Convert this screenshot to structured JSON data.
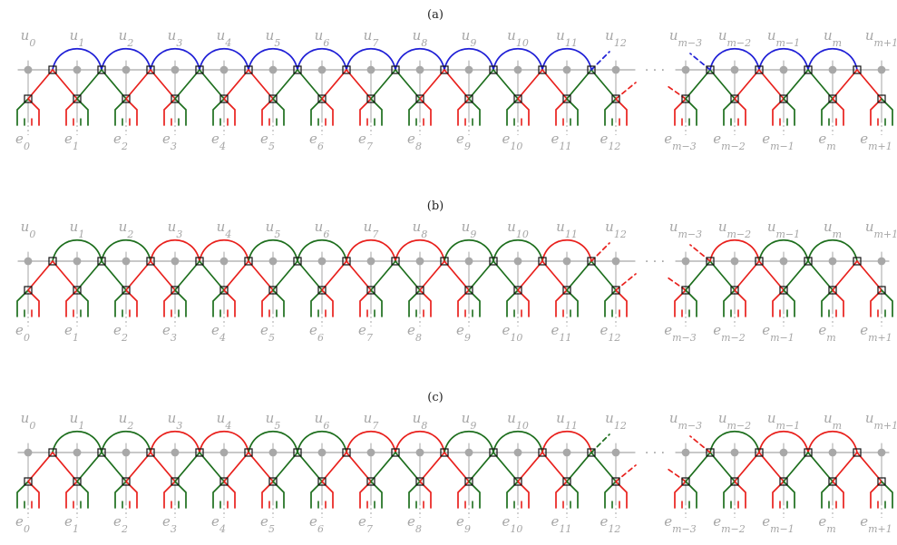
{
  "colors": {
    "blue": "#1f1fd6",
    "red": "#e8201c",
    "green": "#1d6e1d",
    "gray": "#a6a6a6",
    "label_gray": "#a6a6a6",
    "square": "#111111"
  },
  "ellipsis": "· · ·",
  "u_labels": [
    "u0",
    "u1",
    "u2",
    "u3",
    "u4",
    "u5",
    "u6",
    "u7",
    "u8",
    "u9",
    "u10",
    "u11",
    "u12",
    "um−3",
    "um−2",
    "um−1",
    "um",
    "um+1"
  ],
  "e_labels": [
    "e0",
    "e1",
    "e2",
    "e3",
    "e4",
    "e5",
    "e6",
    "e7",
    "e8",
    "e9",
    "e10",
    "e11",
    "e12",
    "em−3",
    "em−2",
    "em−1",
    "em",
    "em+1"
  ],
  "panels": [
    {
      "label": "(a)",
      "arcs_left": [
        "blue",
        "blue",
        "blue",
        "blue",
        "blue",
        "blue",
        "blue",
        "blue",
        "blue",
        "blue",
        "blue"
      ],
      "arcs_right": [
        "blue",
        "blue",
        "blue"
      ],
      "left_stub": "blue",
      "right_stub": "blue",
      "variant": "a"
    },
    {
      "label": "(b)",
      "arcs_left": [
        "green",
        "green",
        "red",
        "red",
        "green",
        "green",
        "red",
        "red",
        "green",
        "green",
        "red"
      ],
      "arcs_right": [
        "red",
        "green",
        "green"
      ],
      "left_stub": "red",
      "right_stub": "red",
      "variant": "b"
    },
    {
      "label": "(c)",
      "arcs_left": [
        "green",
        "green",
        "red",
        "red",
        "green",
        "green",
        "red",
        "red",
        "green",
        "green",
        "red"
      ],
      "arcs_right": [
        "green",
        "red",
        "red"
      ],
      "left_stub": "red",
      "right_stub": "green",
      "variant": "c"
    }
  ]
}
